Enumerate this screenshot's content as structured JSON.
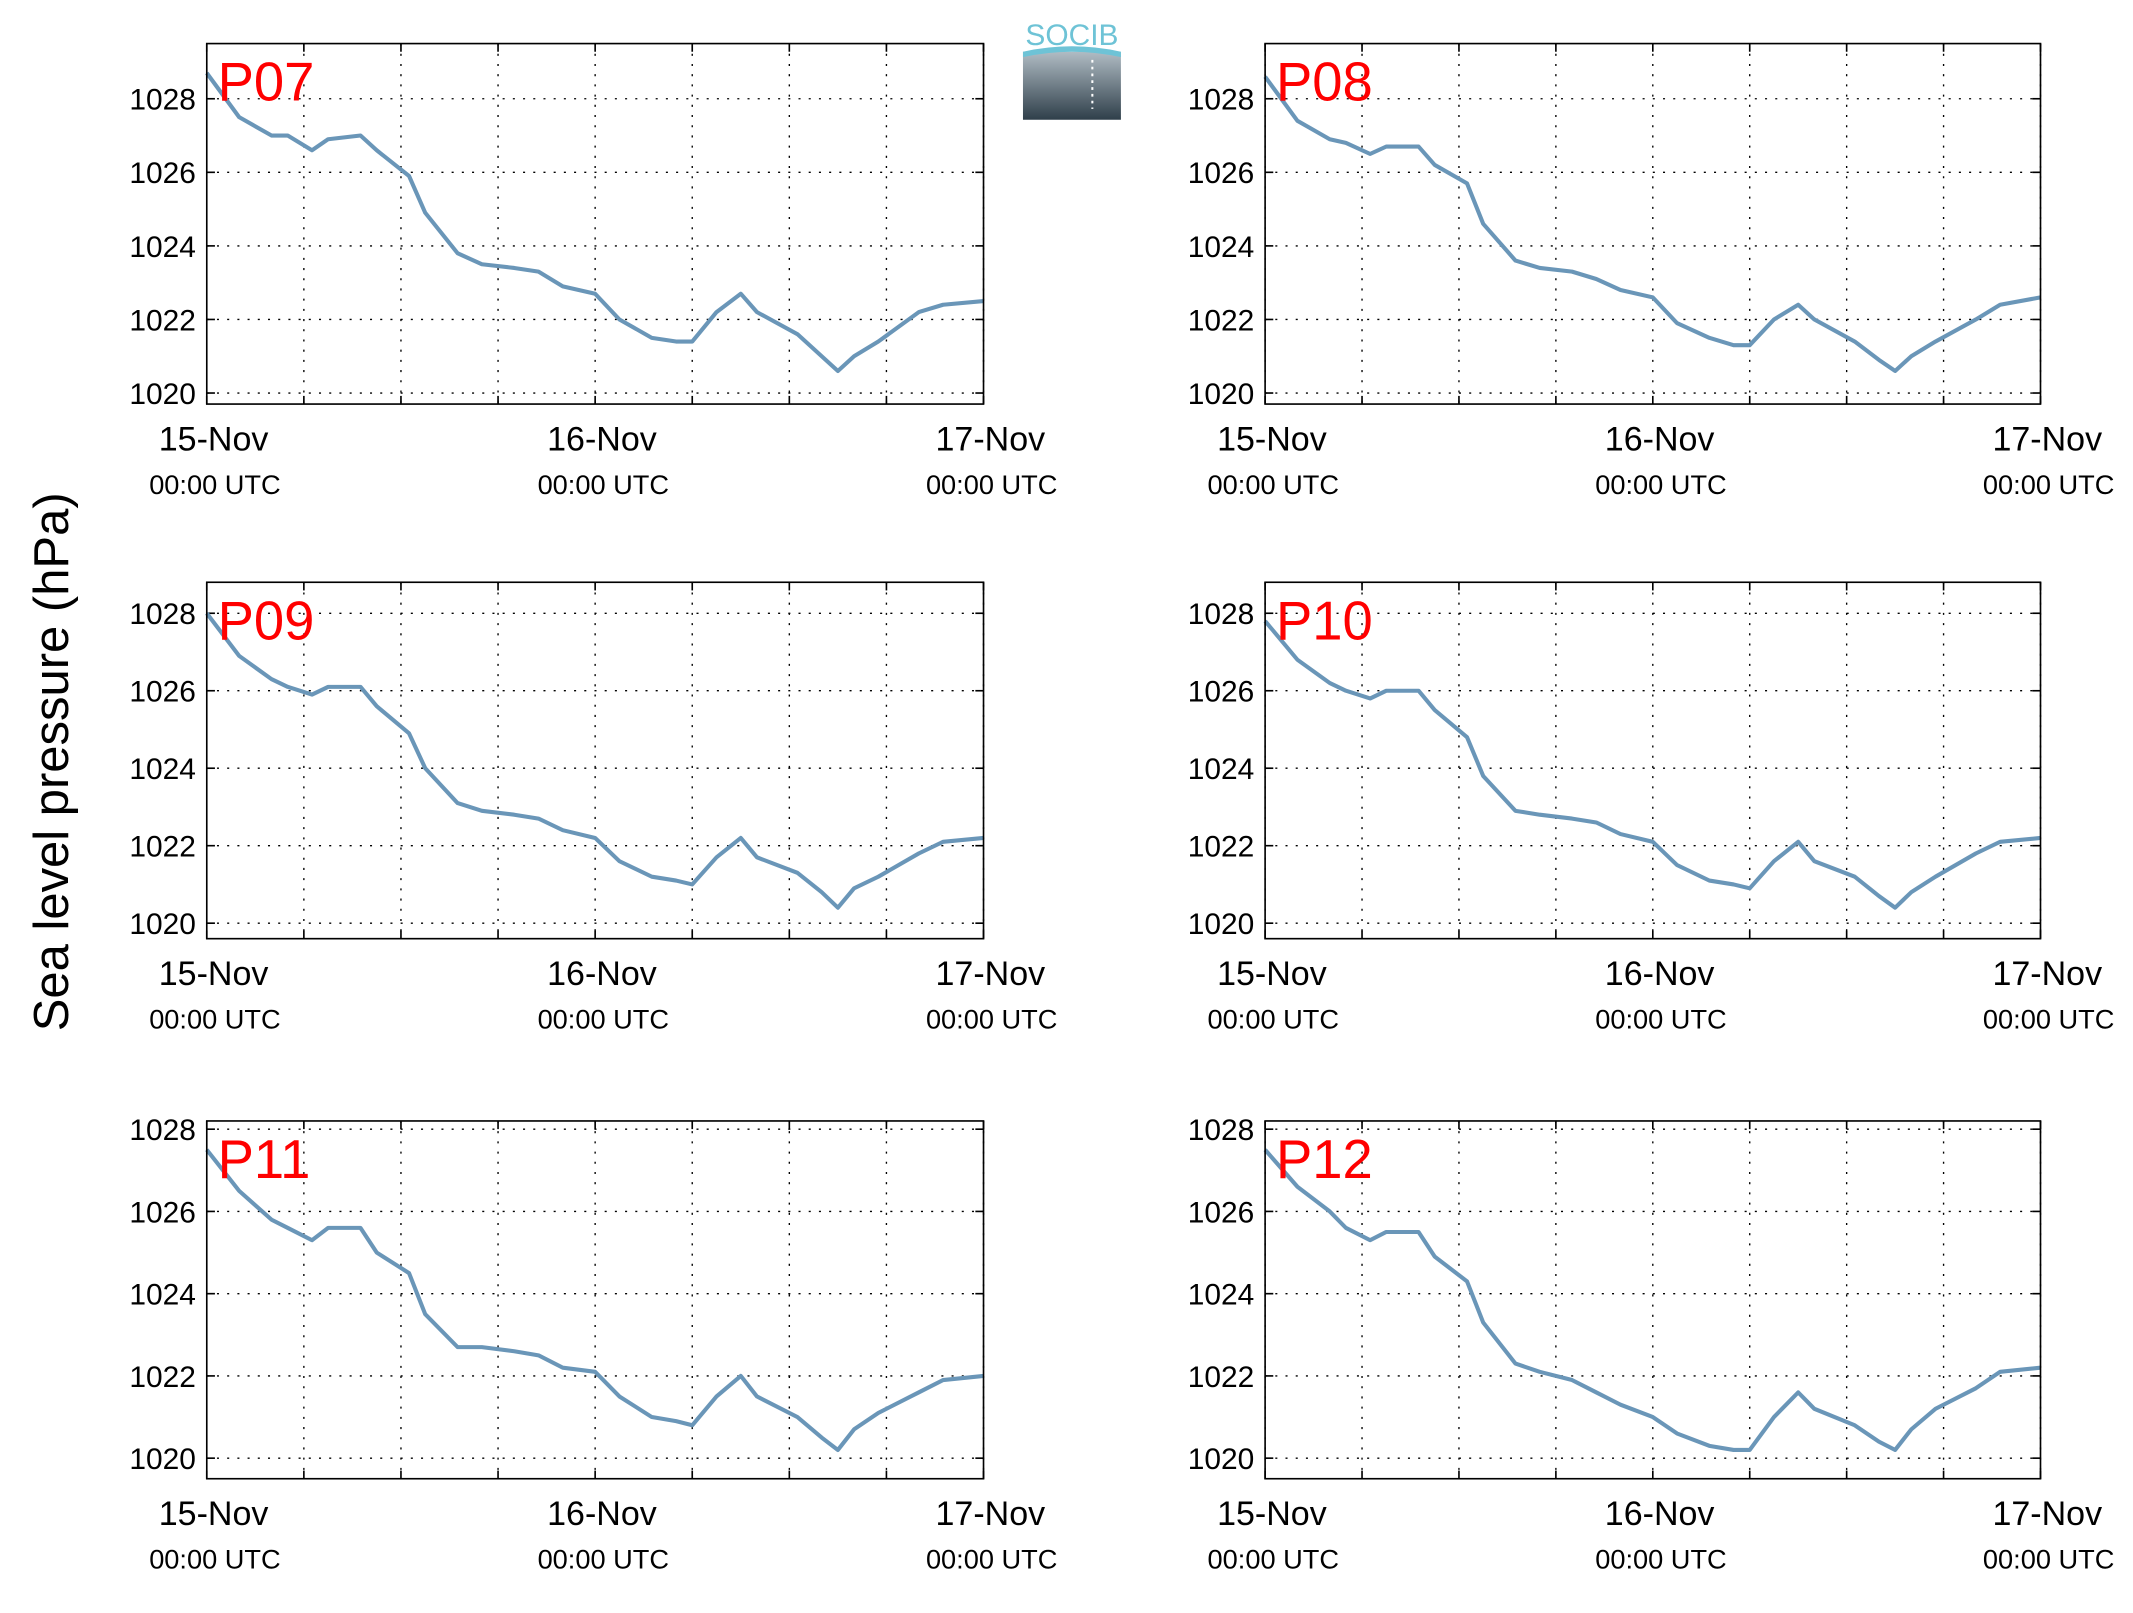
{
  "ylabel": "Sea level pressure (hPa)",
  "logo": "SOCIB",
  "chart_data": [
    {
      "type": "line",
      "title": "P07",
      "xlim": [
        0,
        48
      ],
      "xticks": [
        {
          "value": 0,
          "label": "15-Nov"
        },
        {
          "value": 24,
          "label": "16-Nov"
        },
        {
          "value": 48,
          "label": "17-Nov"
        }
      ],
      "xtick_time": "00:00 UTC",
      "xminorticks": [
        6,
        12,
        18,
        30,
        36,
        42
      ],
      "ylim": [
        1019.7,
        1029.5
      ],
      "yticks": [
        1020,
        1022,
        1024,
        1026,
        1028
      ],
      "grid": true,
      "series": [
        {
          "color": "#6a96b8",
          "x": [
            0,
            2,
            4,
            5,
            6.5,
            7.5,
            9.5,
            10.5,
            12.5,
            13.5,
            15.5,
            17,
            19,
            20.5,
            22,
            24,
            25.5,
            27.5,
            29,
            30,
            31.5,
            33,
            34,
            36.5,
            38,
            39,
            40,
            41.5,
            44,
            45.5,
            48
          ],
          "values": [
            1028.7,
            1027.5,
            1027.0,
            1027.0,
            1026.6,
            1026.9,
            1027.0,
            1026.6,
            1025.9,
            1024.9,
            1023.8,
            1023.5,
            1023.4,
            1023.3,
            1022.9,
            1022.7,
            1022.0,
            1021.5,
            1021.4,
            1021.4,
            1022.2,
            1022.7,
            1022.2,
            1021.6,
            1021.0,
            1020.6,
            1021.0,
            1021.4,
            1022.2,
            1022.4,
            1022.5
          ]
        }
      ]
    },
    {
      "type": "line",
      "title": "P08",
      "xlim": [
        0,
        48
      ],
      "xticks": [
        {
          "value": 0,
          "label": "15-Nov"
        },
        {
          "value": 24,
          "label": "16-Nov"
        },
        {
          "value": 48,
          "label": "17-Nov"
        }
      ],
      "xtick_time": "00:00 UTC",
      "xminorticks": [
        6,
        12,
        18,
        30,
        36,
        42
      ],
      "ylim": [
        1019.7,
        1029.5
      ],
      "yticks": [
        1020,
        1022,
        1024,
        1026,
        1028
      ],
      "grid": true,
      "series": [
        {
          "color": "#6a96b8",
          "x": [
            0,
            2,
            4,
            5,
            6.5,
            7.5,
            9.5,
            10.5,
            12.5,
            13.5,
            15.5,
            17,
            19,
            20.5,
            22,
            24,
            25.5,
            27.5,
            29,
            30,
            31.5,
            33,
            34,
            36.5,
            38,
            39,
            40,
            41.5,
            44,
            45.5,
            48
          ],
          "values": [
            1028.6,
            1027.4,
            1026.9,
            1026.8,
            1026.5,
            1026.7,
            1026.7,
            1026.2,
            1025.7,
            1024.6,
            1023.6,
            1023.4,
            1023.3,
            1023.1,
            1022.8,
            1022.6,
            1021.9,
            1021.5,
            1021.3,
            1021.3,
            1022.0,
            1022.4,
            1022.0,
            1021.4,
            1020.9,
            1020.6,
            1021.0,
            1021.4,
            1022.0,
            1022.4,
            1022.6
          ]
        }
      ]
    },
    {
      "type": "line",
      "title": "P09",
      "xlim": [
        0,
        48
      ],
      "xticks": [
        {
          "value": 0,
          "label": "15-Nov"
        },
        {
          "value": 24,
          "label": "16-Nov"
        },
        {
          "value": 48,
          "label": "17-Nov"
        }
      ],
      "xtick_time": "00:00 UTC",
      "xminorticks": [
        6,
        12,
        18,
        30,
        36,
        42
      ],
      "ylim": [
        1019.6,
        1028.8
      ],
      "yticks": [
        1020,
        1022,
        1024,
        1026,
        1028
      ],
      "grid": true,
      "series": [
        {
          "color": "#6a96b8",
          "x": [
            0,
            2,
            4,
            5,
            6.5,
            7.5,
            9.5,
            10.5,
            12.5,
            13.5,
            15.5,
            17,
            19,
            20.5,
            22,
            24,
            25.5,
            27.5,
            29,
            30,
            31.5,
            33,
            34,
            36.5,
            38,
            39,
            40,
            41.5,
            44,
            45.5,
            48
          ],
          "values": [
            1028.0,
            1026.9,
            1026.3,
            1026.1,
            1025.9,
            1026.1,
            1026.1,
            1025.6,
            1024.9,
            1024.0,
            1023.1,
            1022.9,
            1022.8,
            1022.7,
            1022.4,
            1022.2,
            1021.6,
            1021.2,
            1021.1,
            1021.0,
            1021.7,
            1022.2,
            1021.7,
            1021.3,
            1020.8,
            1020.4,
            1020.9,
            1021.2,
            1021.8,
            1022.1,
            1022.2
          ]
        }
      ]
    },
    {
      "type": "line",
      "title": "P10",
      "xlim": [
        0,
        48
      ],
      "xticks": [
        {
          "value": 0,
          "label": "15-Nov"
        },
        {
          "value": 24,
          "label": "16-Nov"
        },
        {
          "value": 48,
          "label": "17-Nov"
        }
      ],
      "xtick_time": "00:00 UTC",
      "xminorticks": [
        6,
        12,
        18,
        30,
        36,
        42
      ],
      "ylim": [
        1019.6,
        1028.8
      ],
      "yticks": [
        1020,
        1022,
        1024,
        1026,
        1028
      ],
      "grid": true,
      "series": [
        {
          "color": "#6a96b8",
          "x": [
            0,
            2,
            4,
            5,
            6.5,
            7.5,
            9.5,
            10.5,
            12.5,
            13.5,
            15.5,
            17,
            19,
            20.5,
            22,
            24,
            25.5,
            27.5,
            29,
            30,
            31.5,
            33,
            34,
            36.5,
            38,
            39,
            40,
            41.5,
            44,
            45.5,
            48
          ],
          "values": [
            1027.8,
            1026.8,
            1026.2,
            1026.0,
            1025.8,
            1026.0,
            1026.0,
            1025.5,
            1024.8,
            1023.8,
            1022.9,
            1022.8,
            1022.7,
            1022.6,
            1022.3,
            1022.1,
            1021.5,
            1021.1,
            1021.0,
            1020.9,
            1021.6,
            1022.1,
            1021.6,
            1021.2,
            1020.7,
            1020.4,
            1020.8,
            1021.2,
            1021.8,
            1022.1,
            1022.2
          ]
        }
      ]
    },
    {
      "type": "line",
      "title": "P11",
      "xlim": [
        0,
        48
      ],
      "xticks": [
        {
          "value": 0,
          "label": "15-Nov"
        },
        {
          "value": 24,
          "label": "16-Nov"
        },
        {
          "value": 48,
          "label": "17-Nov"
        }
      ],
      "xtick_time": "00:00 UTC",
      "xminorticks": [
        6,
        12,
        18,
        30,
        36,
        42
      ],
      "ylim": [
        1019.5,
        1028.2
      ],
      "yticks": [
        1020,
        1022,
        1024,
        1026,
        1028
      ],
      "grid": true,
      "series": [
        {
          "color": "#6a96b8",
          "x": [
            0,
            2,
            4,
            5,
            6.5,
            7.5,
            9.5,
            10.5,
            12.5,
            13.5,
            15.5,
            17,
            19,
            20.5,
            22,
            24,
            25.5,
            27.5,
            29,
            30,
            31.5,
            33,
            34,
            36.5,
            38,
            39,
            40,
            41.5,
            44,
            45.5,
            48
          ],
          "values": [
            1027.5,
            1026.5,
            1025.8,
            1025.6,
            1025.3,
            1025.6,
            1025.6,
            1025.0,
            1024.5,
            1023.5,
            1022.7,
            1022.7,
            1022.6,
            1022.5,
            1022.2,
            1022.1,
            1021.5,
            1021.0,
            1020.9,
            1020.8,
            1021.5,
            1022.0,
            1021.5,
            1021.0,
            1020.5,
            1020.2,
            1020.7,
            1021.1,
            1021.6,
            1021.9,
            1022.0
          ]
        }
      ]
    },
    {
      "type": "line",
      "title": "P12",
      "xlim": [
        0,
        48
      ],
      "xticks": [
        {
          "value": 0,
          "label": "15-Nov"
        },
        {
          "value": 24,
          "label": "16-Nov"
        },
        {
          "value": 48,
          "label": "17-Nov"
        }
      ],
      "xtick_time": "00:00 UTC",
      "xminorticks": [
        6,
        12,
        18,
        30,
        36,
        42
      ],
      "ylim": [
        1019.5,
        1028.2
      ],
      "yticks": [
        1020,
        1022,
        1024,
        1026,
        1028
      ],
      "grid": true,
      "series": [
        {
          "color": "#6a96b8",
          "x": [
            0,
            2,
            4,
            5,
            6.5,
            7.5,
            9.5,
            10.5,
            12.5,
            13.5,
            15.5,
            17,
            19,
            20.5,
            22,
            24,
            25.5,
            27.5,
            29,
            30,
            31.5,
            33,
            34,
            36.5,
            38,
            39,
            40,
            41.5,
            44,
            45.5,
            48
          ],
          "values": [
            1027.5,
            1026.6,
            1026.0,
            1025.6,
            1025.3,
            1025.5,
            1025.5,
            1024.9,
            1024.3,
            1023.3,
            1022.3,
            1022.1,
            1021.9,
            1021.6,
            1021.3,
            1021.0,
            1020.6,
            1020.3,
            1020.2,
            1020.2,
            1021.0,
            1021.6,
            1021.2,
            1020.8,
            1020.4,
            1020.2,
            1020.7,
            1021.2,
            1021.7,
            1022.1,
            1022.2
          ]
        }
      ]
    }
  ]
}
